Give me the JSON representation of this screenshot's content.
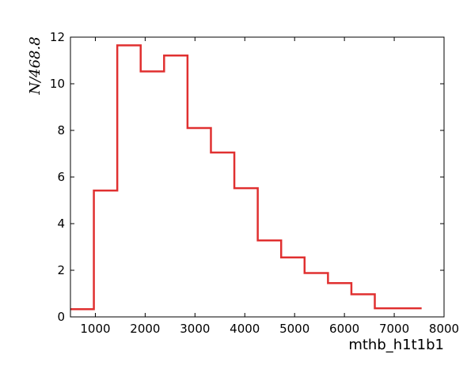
{
  "chart_data": {
    "type": "step",
    "xlabel": "mthb_h1t1b1",
    "ylabel": "N/468.8",
    "xlim": [
      500,
      8000
    ],
    "ylim": [
      0,
      12
    ],
    "xticks": [
      1000,
      2000,
      3000,
      4000,
      5000,
      6000,
      7000,
      8000
    ],
    "yticks": [
      0,
      2,
      4,
      6,
      8,
      10,
      12
    ],
    "grid": false,
    "line_color": "#e03030",
    "bin_edges": [
      500,
      970,
      1440,
      1910,
      2380,
      2850,
      3320,
      3790,
      4260,
      4730,
      5200,
      5670,
      6140,
      6610,
      7080,
      7550
    ],
    "values": [
      0.33,
      5.42,
      11.65,
      10.53,
      11.21,
      8.1,
      7.05,
      5.52,
      3.28,
      2.55,
      1.88,
      1.45,
      0.97,
      0.37,
      0.37
    ]
  }
}
